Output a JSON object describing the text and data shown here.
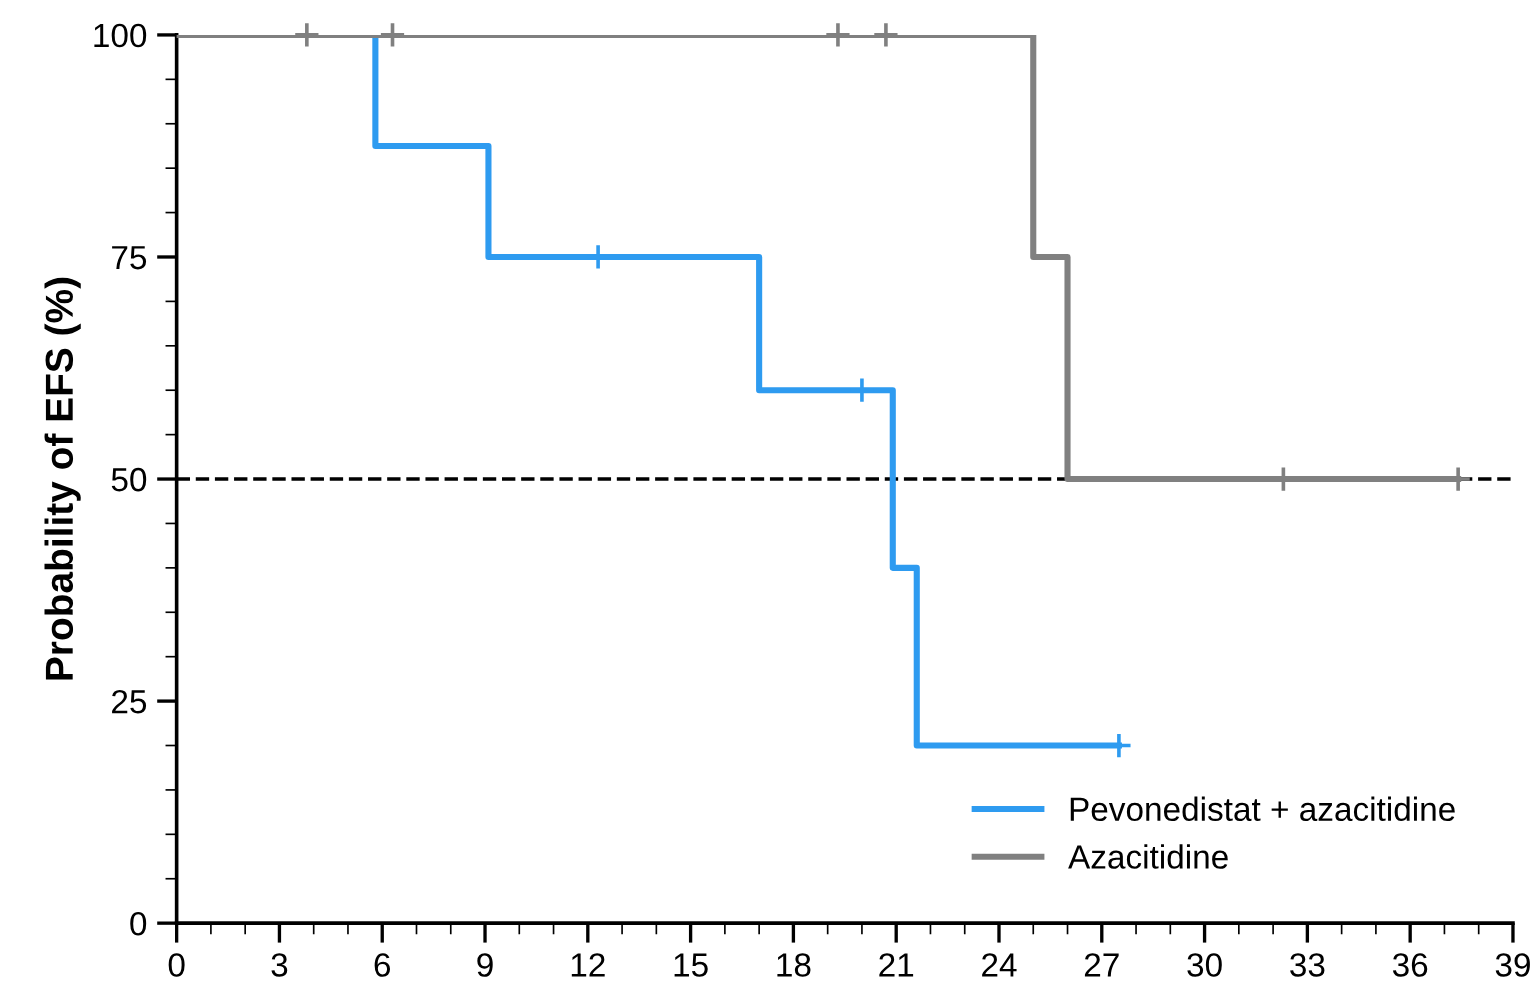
{
  "chart_data": {
    "type": "step",
    "ylabel": "Probability of EFS (%)",
    "series": [
      {
        "name": "Pevonedistat + azacitidine",
        "color": "#2e9bf0",
        "x": [
          0,
          5.8,
          9.1,
          17.0,
          20.9,
          21.6,
          27.5
        ],
        "values": [
          100,
          87.5,
          75,
          60,
          40,
          20,
          20
        ]
      },
      {
        "name": "Azacitidine",
        "color": "#808080",
        "x": [
          0,
          25.0,
          26.0,
          37.4
        ],
        "values": [
          100,
          75,
          50,
          50
        ]
      },
      {
        "type": "scatter",
        "marker": "cross",
        "color": "#2e9bf0",
        "x": [
          12.3,
          20.0,
          27.5
        ],
        "values": [
          75,
          60,
          20
        ]
      },
      {
        "type": "scatter",
        "marker": "cross",
        "color": "#808080",
        "x": [
          3.8,
          6.3,
          19.3,
          20.7,
          32.3,
          37.4
        ],
        "values": [
          100,
          100,
          100,
          100,
          50,
          50
        ]
      }
    ],
    "xlim": [
      0,
      39
    ],
    "xticks": [
      0,
      3,
      6,
      9,
      12,
      15,
      18,
      21,
      24,
      27,
      30,
      33,
      36,
      39
    ],
    "ylim": [
      0,
      100
    ],
    "yticks": [
      0,
      25,
      50,
      75,
      100
    ],
    "ref_lines": [
      {
        "axis": "y",
        "value": 50,
        "color": "#000000",
        "line_style": "dashed"
      }
    ],
    "grid": false,
    "legend": "bottom right"
  }
}
